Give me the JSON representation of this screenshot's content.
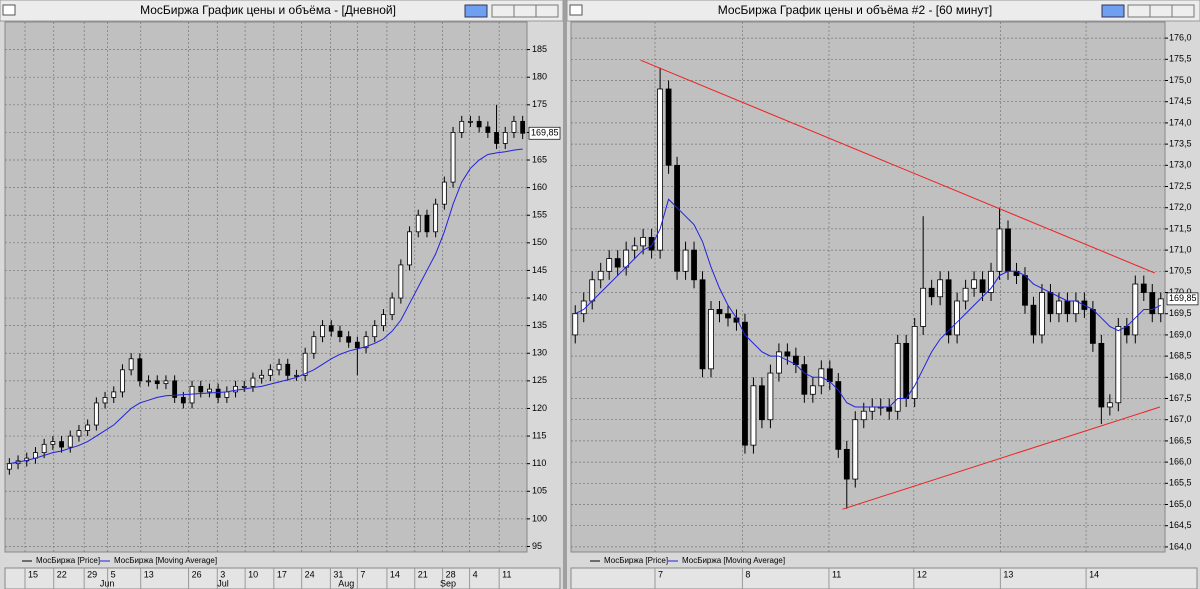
{
  "chart_data": [
    {
      "type": "candlestick",
      "title": "МосБиржа График цены и объёма - [Дневной]",
      "ylim": [
        94,
        190
      ],
      "yticks": [
        95,
        100,
        105,
        110,
        115,
        120,
        125,
        130,
        135,
        140,
        145,
        150,
        155,
        160,
        165,
        170,
        175,
        180,
        185
      ],
      "xlim": [
        -0.5,
        59.5
      ],
      "xticks": [
        {
          "value": 1.8,
          "label": "15"
        },
        {
          "value": 5.1,
          "label": "22"
        },
        {
          "value": 8.6,
          "label": "29"
        },
        {
          "value": 11.3,
          "label": "5"
        },
        {
          "value": 15.1,
          "label": "13"
        },
        {
          "value": 20.6,
          "label": "26"
        },
        {
          "value": 23.9,
          "label": "3"
        },
        {
          "value": 27.1,
          "label": "10"
        },
        {
          "value": 30.4,
          "label": "17"
        },
        {
          "value": 33.6,
          "label": "24"
        },
        {
          "value": 36.9,
          "label": "31"
        },
        {
          "value": 40.0,
          "label": "7"
        },
        {
          "value": 43.4,
          "label": "14"
        },
        {
          "value": 46.6,
          "label": "21"
        },
        {
          "value": 49.8,
          "label": "28"
        },
        {
          "value": 52.9,
          "label": "4"
        },
        {
          "value": 56.3,
          "label": "11"
        }
      ],
      "month_ticks": [
        {
          "value": 10.4,
          "label": "Jun"
        },
        {
          "value": 23.9,
          "label": "Jul"
        },
        {
          "value": 37.8,
          "label": "Aug"
        },
        {
          "value": 49.5,
          "label": "Sep"
        }
      ],
      "grid": true,
      "last_price": {
        "value": 169.85,
        "label": "169,85"
      },
      "series": [
        {
          "name": "МосБиржа [Price]",
          "color": "#000000",
          "open": [
            109,
            110,
            110.5,
            111,
            112,
            113.5,
            114,
            113,
            115,
            116,
            117,
            121,
            122,
            123,
            127,
            129,
            125,
            125,
            124.5,
            125,
            122,
            121,
            124,
            123,
            123.5,
            122,
            123,
            124,
            124,
            125.5,
            126,
            127,
            128,
            126,
            126,
            130,
            133,
            135,
            134,
            133,
            132,
            131,
            133,
            135,
            137,
            140,
            146,
            152,
            155,
            152,
            157,
            161,
            170,
            172,
            172,
            171,
            170,
            168,
            170,
            172
          ],
          "high": [
            111,
            111.5,
            112,
            113,
            114.5,
            115,
            115,
            116,
            117,
            118,
            122,
            123,
            124,
            128,
            130,
            130,
            126,
            126,
            126,
            126,
            123,
            125,
            125,
            124.5,
            124.5,
            124,
            125,
            125,
            126.5,
            127,
            128,
            129,
            129,
            127,
            131,
            134,
            136,
            136,
            135,
            134,
            133,
            134,
            136,
            138,
            141,
            147,
            153,
            156,
            156,
            158,
            162,
            171,
            173,
            173,
            173,
            172,
            175,
            171,
            173,
            173
          ],
          "low": [
            108,
            109,
            109.5,
            110,
            111,
            112.5,
            112,
            112,
            114,
            115,
            116,
            120,
            121,
            122,
            126,
            124,
            124,
            123.5,
            123.5,
            121,
            120,
            120,
            122,
            122,
            121,
            121,
            122,
            123,
            123,
            124.5,
            125,
            126,
            125,
            125,
            125,
            129,
            132,
            133,
            132,
            131,
            126,
            130,
            132,
            134,
            136,
            139,
            145,
            151,
            151,
            151,
            156,
            160,
            169,
            171,
            170,
            169,
            167,
            167,
            169,
            168.8
          ],
          "close": [
            110,
            110.5,
            111,
            112,
            113.5,
            114,
            113,
            115,
            116,
            117,
            121,
            122,
            123,
            127,
            129,
            125,
            125,
            124.5,
            125,
            122,
            121,
            124,
            123,
            123.5,
            122,
            123,
            124,
            124,
            125.5,
            126,
            127,
            128,
            126,
            126,
            130,
            133,
            135,
            134,
            133,
            132,
            131,
            133,
            135,
            137,
            140,
            146,
            152,
            155,
            152,
            157,
            161,
            170,
            172,
            172,
            171,
            170,
            168,
            170,
            172,
            169.85
          ]
        },
        {
          "name": "МосБиржа [Moving Average]",
          "color": "#2222dd",
          "values": [
            110,
            110.3,
            110.6,
            111,
            111.5,
            112,
            112.3,
            112.8,
            113.3,
            114,
            115,
            116,
            117,
            118.5,
            120,
            121,
            121.5,
            122,
            122.3,
            122.4,
            122.5,
            122.6,
            122.7,
            122.8,
            122.9,
            123,
            123.3,
            123.5,
            123.8,
            124,
            124.4,
            124.8,
            125.2,
            125.6,
            126.3,
            127,
            128,
            129,
            129.8,
            130.4,
            130.8,
            131.2,
            131.8,
            132.6,
            134,
            136,
            139,
            142,
            145,
            148,
            152,
            157,
            161,
            163.5,
            165,
            166,
            166.3,
            166.5,
            166.8,
            167
          ]
        }
      ]
    },
    {
      "type": "candlestick",
      "title": "МосБиржа График цены и объёма #2 - [60 минут]",
      "ylim": [
        163.88,
        176.38
      ],
      "yticks": [
        {
          "value": 164,
          "label": "164,0"
        },
        {
          "value": 164.5,
          "label": "164,5"
        },
        {
          "value": 165,
          "label": "165,0"
        },
        {
          "value": 165.5,
          "label": "165,5"
        },
        {
          "value": 166,
          "label": "166,0"
        },
        {
          "value": 166.5,
          "label": "166,5"
        },
        {
          "value": 167,
          "label": "167,0"
        },
        {
          "value": 167.5,
          "label": "167,5"
        },
        {
          "value": 168,
          "label": "168,0"
        },
        {
          "value": 168.5,
          "label": "168,5"
        },
        {
          "value": 169,
          "label": "169,0"
        },
        {
          "value": 169.5,
          "label": "169,5"
        },
        {
          "value": 170,
          "label": "170,0"
        },
        {
          "value": 170.5,
          "label": "170,5"
        },
        {
          "value": 171,
          "label": "171,0"
        },
        {
          "value": 171.5,
          "label": "171,5"
        },
        {
          "value": 172,
          "label": "172,0"
        },
        {
          "value": 172.5,
          "label": "172,5"
        },
        {
          "value": 173,
          "label": "173,0"
        },
        {
          "value": 173.5,
          "label": "173,5"
        },
        {
          "value": 174,
          "label": "174,0"
        },
        {
          "value": 174.5,
          "label": "174,5"
        },
        {
          "value": 175,
          "label": "175,0"
        },
        {
          "value": 175.5,
          "label": "175,5"
        },
        {
          "value": 176,
          "label": "176,0"
        }
      ],
      "xlim": [
        -0.5,
        69.5
      ],
      "xticks": [
        {
          "value": 9.4,
          "label": "7"
        },
        {
          "value": 19.7,
          "label": "8"
        },
        {
          "value": 29.9,
          "label": "11"
        },
        {
          "value": 39.9,
          "label": "12"
        },
        {
          "value": 50.1,
          "label": "13"
        },
        {
          "value": 60.2,
          "label": "14"
        }
      ],
      "grid": true,
      "last_price": {
        "value": 169.85,
        "label": "169,85"
      },
      "trendlines": [
        {
          "color": "#ee2222",
          "x": [
            7.7,
            68.3
          ],
          "y": [
            175.48,
            170.46
          ]
        },
        {
          "color": "#ee2222",
          "x": [
            31.5,
            68.9
          ],
          "y": [
            164.89,
            167.3
          ]
        }
      ],
      "series": [
        {
          "name": "МосБиржа [Price]",
          "color": "#000000",
          "open": [
            169.0,
            169.5,
            169.8,
            170.3,
            170.5,
            170.8,
            170.6,
            171.0,
            171.1,
            171.3,
            171.0,
            174.8,
            173.0,
            170.5,
            171.0,
            170.3,
            168.2,
            169.6,
            169.5,
            169.4,
            169.3,
            166.4,
            167.8,
            167.0,
            168.1,
            168.6,
            168.5,
            168.3,
            167.6,
            167.8,
            168.2,
            167.9,
            166.3,
            165.6,
            167.0,
            167.2,
            167.3,
            167.3,
            167.2,
            168.8,
            167.5,
            169.2,
            170.1,
            169.9,
            170.3,
            169.0,
            169.8,
            170.1,
            170.3,
            170.0,
            170.5,
            171.5,
            170.5,
            170.4,
            169.7,
            169.0,
            170.0,
            169.5,
            169.8,
            169.5,
            169.8,
            169.6,
            168.8,
            167.3,
            167.4,
            169.2,
            169.0,
            170.2,
            170.0,
            169.5
          ],
          "high": [
            169.7,
            170.0,
            170.5,
            170.7,
            171.0,
            171.0,
            171.2,
            171.3,
            171.5,
            171.5,
            175.3,
            175.0,
            173.2,
            171.2,
            171.2,
            170.5,
            169.8,
            169.8,
            169.7,
            169.6,
            169.5,
            168.0,
            168.0,
            168.3,
            168.8,
            168.8,
            168.7,
            168.5,
            168.0,
            168.4,
            168.4,
            168.1,
            166.5,
            167.2,
            167.4,
            167.5,
            167.5,
            167.5,
            169.0,
            169.0,
            169.4,
            171.8,
            170.3,
            170.5,
            170.5,
            170.0,
            170.3,
            170.5,
            170.5,
            170.7,
            172.0,
            171.7,
            170.7,
            170.6,
            169.9,
            170.2,
            170.2,
            170.0,
            170.0,
            170.0,
            170.0,
            169.8,
            169.0,
            167.6,
            169.4,
            169.4,
            170.4,
            170.4,
            170.2,
            170.0
          ],
          "low": [
            168.8,
            169.3,
            169.6,
            170.1,
            170.3,
            170.4,
            170.4,
            170.8,
            170.9,
            170.8,
            170.8,
            172.8,
            170.3,
            170.3,
            170.1,
            168.0,
            168.0,
            169.3,
            169.2,
            169.1,
            166.2,
            166.2,
            166.8,
            166.8,
            167.9,
            168.3,
            168.1,
            167.4,
            167.4,
            167.6,
            167.7,
            166.1,
            164.9,
            165.4,
            166.8,
            167.0,
            167.1,
            167.0,
            167.0,
            167.3,
            167.3,
            169.0,
            169.7,
            169.7,
            168.8,
            168.8,
            169.6,
            169.9,
            169.8,
            169.8,
            170.3,
            170.3,
            170.2,
            169.5,
            168.8,
            168.8,
            169.3,
            169.3,
            169.3,
            169.3,
            169.4,
            168.6,
            166.9,
            167.1,
            167.2,
            168.8,
            168.8,
            169.8,
            169.3,
            169.3
          ],
          "close": [
            169.5,
            169.8,
            170.3,
            170.5,
            170.8,
            170.6,
            171.0,
            171.1,
            171.3,
            171.0,
            174.8,
            173.0,
            170.5,
            171.0,
            170.3,
            168.2,
            169.6,
            169.5,
            169.4,
            169.3,
            166.4,
            167.8,
            167.0,
            168.1,
            168.6,
            168.5,
            168.3,
            167.6,
            167.8,
            168.2,
            167.9,
            166.3,
            165.6,
            167.0,
            167.2,
            167.3,
            167.3,
            167.2,
            168.8,
            167.5,
            169.2,
            170.1,
            169.9,
            170.3,
            169.0,
            169.8,
            170.1,
            170.3,
            170.0,
            170.5,
            171.5,
            170.5,
            170.4,
            169.7,
            169.0,
            170.0,
            169.5,
            169.8,
            169.5,
            169.8,
            169.6,
            168.8,
            167.3,
            167.4,
            169.2,
            169.0,
            170.2,
            170.0,
            169.5,
            169.85
          ]
        },
        {
          "name": "МосБиржа [Moving Average]",
          "color": "#2222dd",
          "values": [
            169.5,
            169.6,
            169.8,
            170.0,
            170.2,
            170.4,
            170.6,
            170.8,
            171.0,
            171.1,
            171.5,
            172.2,
            172.0,
            171.8,
            171.6,
            171.2,
            170.6,
            170.1,
            169.7,
            169.4,
            169.0,
            168.8,
            168.6,
            168.5,
            168.5,
            168.4,
            168.3,
            168.1,
            168.0,
            168.0,
            167.9,
            167.7,
            167.4,
            167.3,
            167.3,
            167.3,
            167.3,
            167.3,
            167.5,
            167.5,
            167.8,
            168.2,
            168.6,
            168.9,
            169.1,
            169.3,
            169.5,
            169.7,
            169.9,
            170.1,
            170.4,
            170.5,
            170.5,
            170.4,
            170.2,
            170.1,
            170.0,
            169.9,
            169.8,
            169.8,
            169.7,
            169.6,
            169.4,
            169.2,
            169.1,
            169.2,
            169.4,
            169.6,
            169.6,
            169.7
          ]
        }
      ]
    }
  ]
}
